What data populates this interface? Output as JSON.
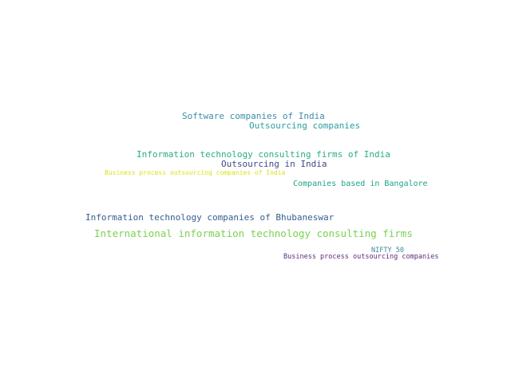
{
  "word_cloud": {
    "words": [
      {
        "text": "Software companies of India",
        "color": "#3b8ea5"
      },
      {
        "text": "Outsourcing companies",
        "color": "#2c9ea2"
      },
      {
        "text": "Information technology consulting firms of India",
        "color": "#28ae80"
      },
      {
        "text": "Outsourcing in India",
        "color": "#3e4a89"
      },
      {
        "text": "Business process outsourcing companies of India",
        "color": "#d8e219"
      },
      {
        "text": "Companies based in Bangalore",
        "color": "#20a486"
      },
      {
        "text": "Information technology companies of Bhubaneswar",
        "color": "#365d8d"
      },
      {
        "text": "International information technology consulting firms",
        "color": "#7ad151"
      },
      {
        "text": "NIFTY 50",
        "color": "#3a8a9c"
      },
      {
        "text": "Business process outsourcing companies",
        "color": "#5a2d7a"
      }
    ]
  }
}
